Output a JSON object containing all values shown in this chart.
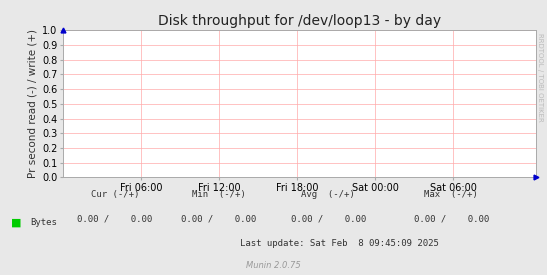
{
  "title": "Disk throughput for /dev/loop13 - by day",
  "ylabel": "Pr second read (-) / write (+)",
  "background_color": "#e8e8e8",
  "plot_bg_color": "#ffffff",
  "grid_color": "#ffaaaa",
  "border_color": "#aaaaaa",
  "ylim": [
    0.0,
    1.0
  ],
  "yticks": [
    0.0,
    0.1,
    0.2,
    0.3,
    0.4,
    0.5,
    0.6,
    0.7,
    0.8,
    0.9,
    1.0
  ],
  "xtick_labels": [
    "Fri 06:00",
    "Fri 12:00",
    "Fri 18:00",
    "Sat 00:00",
    "Sat 06:00"
  ],
  "xtick_positions": [
    0.165,
    0.33,
    0.495,
    0.66,
    0.825
  ],
  "legend_label": "Bytes",
  "legend_color": "#00cc00",
  "last_update": "Last update: Sat Feb  8 09:45:09 2025",
  "munin_version": "Munin 2.0.75",
  "rrdtool_label": "RRDTOOL / TOBI OETIKER",
  "title_fontsize": 10,
  "axis_fontsize": 7.5,
  "tick_fontsize": 7,
  "footer_fontsize": 6.5,
  "munin_fontsize": 6,
  "dot_color": "#0000cc",
  "cur_label": "Cur (-/+)",
  "min_label": "Min  (-/+)",
  "avg_label": "Avg  (-/+)",
  "max_label": "Max  (-/+)",
  "cur_val": "0.00 /    0.00",
  "min_val": "0.00 /    0.00",
  "avg_val": "0.00 /    0.00",
  "max_val": "0.00 /    0.00"
}
